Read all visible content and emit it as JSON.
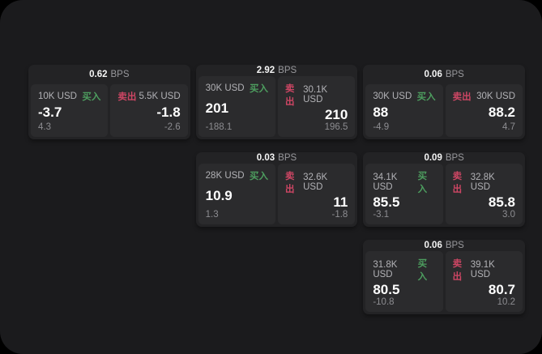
{
  "page": {
    "background": "#000000",
    "panel_background": "#1b1b1d"
  },
  "colors": {
    "buy_green": "#4d9e5f",
    "sell_red": "#cd4664",
    "card_bg": "#232325",
    "cell_bg": "#2b2b2d",
    "value_white": "#ffffff",
    "muted_gray": "#8d8d91"
  },
  "labels": {
    "bps_unit": "BPS",
    "buy": "买入",
    "sell": "卖出"
  },
  "cards": [
    {
      "bps": "0.62",
      "buy": {
        "notional": "10K USD",
        "price": "-3.7",
        "delta": "4.3"
      },
      "sell": {
        "notional": "5.5K USD",
        "price": "-1.8",
        "delta": "-2.6"
      }
    },
    {
      "bps": "2.92",
      "buy": {
        "notional": "30K USD",
        "price": "201",
        "delta": "-188.1"
      },
      "sell": {
        "notional": "30.1K USD",
        "price": "210",
        "delta": "196.5"
      }
    },
    {
      "bps": "0.06",
      "buy": {
        "notional": "30K USD",
        "price": "88",
        "delta": "-4.9"
      },
      "sell": {
        "notional": "30K USD",
        "price": "88.2",
        "delta": "4.7"
      }
    },
    {
      "bps": "0.03",
      "buy": {
        "notional": "28K USD",
        "price": "10.9",
        "delta": "1.3"
      },
      "sell": {
        "notional": "32.6K USD",
        "price": "11",
        "delta": "-1.8"
      }
    },
    {
      "bps": "0.09",
      "buy": {
        "notional": "34.1K USD",
        "price": "85.5",
        "delta": "-3.1"
      },
      "sell": {
        "notional": "32.8K USD",
        "price": "85.8",
        "delta": "3.0"
      }
    },
    {
      "bps": "0.06",
      "buy": {
        "notional": "31.8K USD",
        "price": "80.5",
        "delta": "-10.8"
      },
      "sell": {
        "notional": "39.1K USD",
        "price": "80.7",
        "delta": "10.2"
      }
    }
  ]
}
